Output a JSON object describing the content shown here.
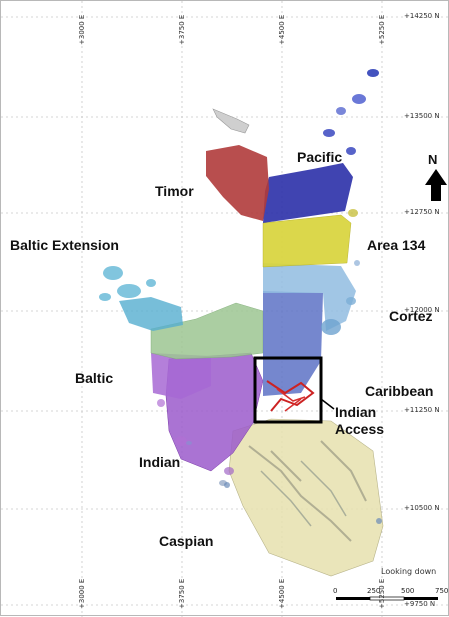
{
  "grid": {
    "eastings": [
      "+3000 E",
      "+3750 E",
      "+4500 E",
      "+5250 E"
    ],
    "northings": [
      "+14250 N",
      "+13500 N",
      "+12750 N",
      "+12000 N",
      "+11250 N",
      "+10500 N",
      "+9750 N"
    ]
  },
  "labels": {
    "pacific": "Pacific",
    "timor": "Timor",
    "baltic_extension": "Baltic Extension",
    "area_134": "Area 134",
    "cortez": "Cortez",
    "baltic": "Baltic",
    "caribbean": "Caribbean",
    "indian_access": "Indian\nAccess",
    "indian": "Indian",
    "caspian": "Caspian"
  },
  "north_arrow": {
    "label": "N"
  },
  "view_note": "Looking down",
  "scale": {
    "ticks": [
      "0",
      "250",
      "500",
      "750"
    ]
  },
  "colors": {
    "pacific": "#2a2fa6",
    "timor": "#b03a3a",
    "area_134": "#d8d43a",
    "cortez": "#8ab4d8",
    "blue_mid": "#5e74c8",
    "baltic_ext": "#5ab0d0",
    "baltic_green": "#94c08a",
    "baltic": "#9a4ec8",
    "caspian": "#e8e2b0",
    "indian_access": "#cc2222"
  }
}
